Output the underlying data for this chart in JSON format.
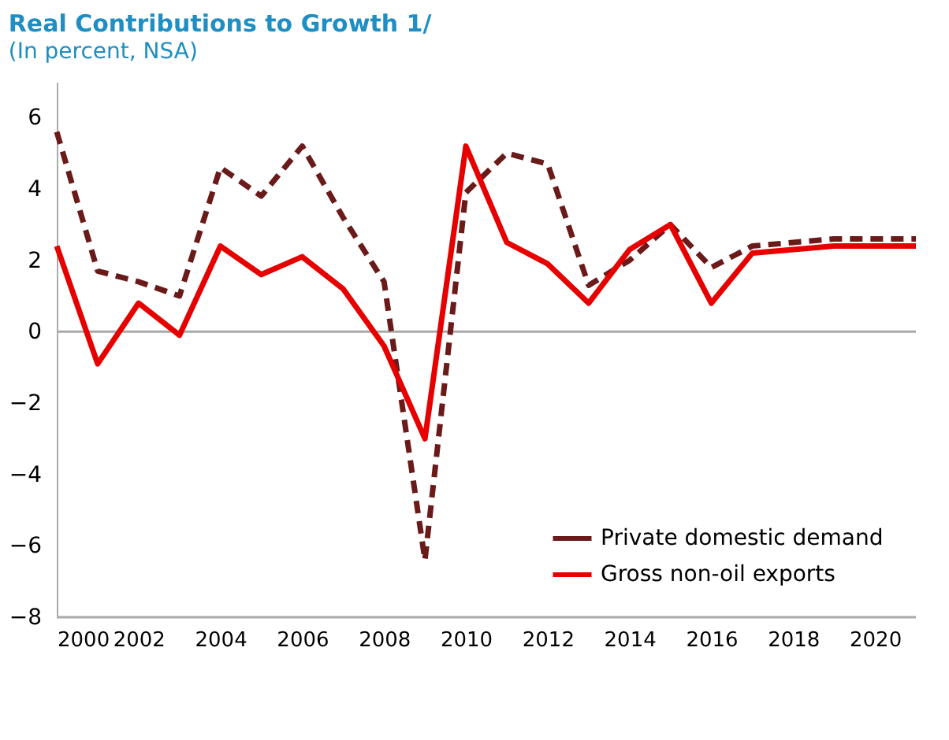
{
  "chart_data": {
    "type": "line",
    "title": "Real Contributions to Growth 1/",
    "subtitle": "(In percent, NSA)",
    "x": [
      2000,
      2001,
      2002,
      2003,
      2004,
      2005,
      2006,
      2007,
      2008,
      2009,
      2010,
      2011,
      2012,
      2013,
      2014,
      2015,
      2016,
      2017,
      2018,
      2019,
      2020,
      2021
    ],
    "series": [
      {
        "name": "Private domestic demand",
        "color": "#6b1a1a",
        "line_style": "dashed",
        "values": [
          5.6,
          1.7,
          1.4,
          1.0,
          4.6,
          3.8,
          5.2,
          3.2,
          1.4,
          -6.4,
          3.9,
          5.0,
          4.7,
          1.3,
          2.0,
          3.0,
          1.8,
          2.4,
          2.5,
          2.6,
          2.6,
          2.6
        ]
      },
      {
        "name": "Gross non-oil exports",
        "color": "#e60000",
        "line_style": "solid",
        "values": [
          2.4,
          -0.9,
          0.8,
          -0.1,
          2.4,
          1.6,
          2.1,
          1.2,
          -0.4,
          -3.0,
          5.2,
          2.5,
          1.9,
          0.8,
          2.3,
          3.0,
          0.8,
          2.2,
          2.3,
          2.4,
          2.4,
          2.4
        ]
      }
    ],
    "xlim": [
      2000,
      2021
    ],
    "xticks": [
      2000,
      2002,
      2004,
      2006,
      2008,
      2010,
      2012,
      2014,
      2016,
      2018,
      2020
    ],
    "ylim": [
      -8,
      7
    ],
    "yticks": [
      -8,
      -6,
      -4,
      -2,
      0,
      2,
      4,
      6
    ],
    "ref_lines": [
      {
        "axis": "y",
        "value": 0,
        "color": "#aaaaaa"
      }
    ],
    "grid": false,
    "legend": "bottom right",
    "marker": "none"
  }
}
